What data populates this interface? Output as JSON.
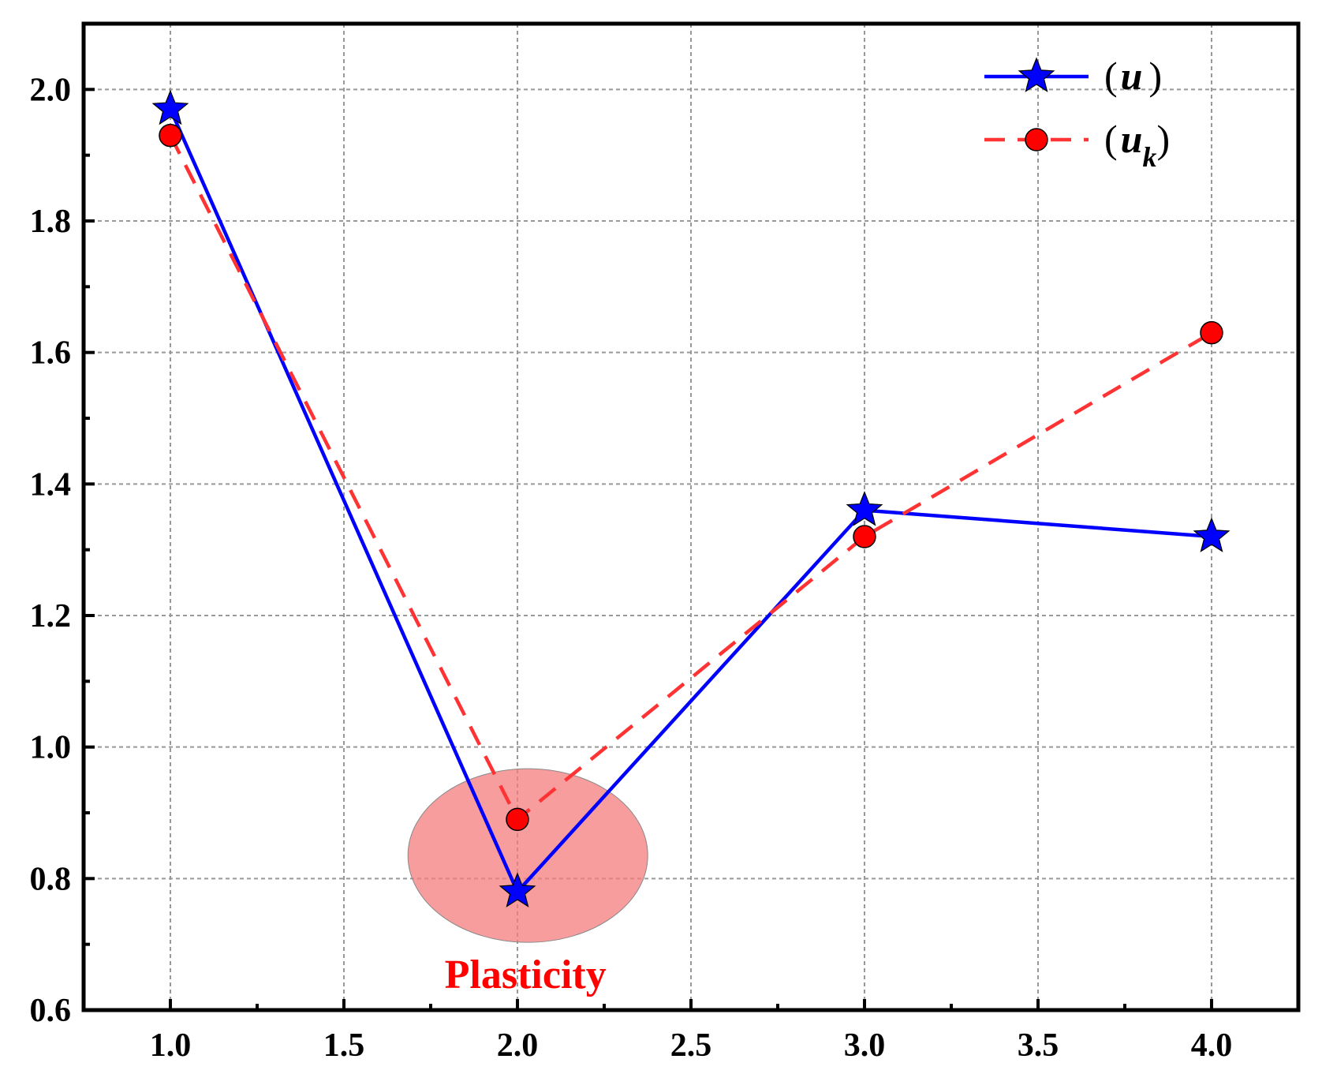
{
  "chart_data": {
    "type": "line",
    "title": "",
    "xlabel": "",
    "ylabel": "",
    "xlim": [
      0.75,
      4.25
    ],
    "ylim": [
      0.6,
      2.1
    ],
    "grid": true,
    "legend_position": "top-right",
    "x_ticks": [
      {
        "value": 1.0,
        "label": "1.0"
      },
      {
        "value": 1.5,
        "label": "1.5"
      },
      {
        "value": 2.0,
        "label": "2.0"
      },
      {
        "value": 2.5,
        "label": "2.5"
      },
      {
        "value": 3.0,
        "label": "3.0"
      },
      {
        "value": 3.5,
        "label": "3.5"
      },
      {
        "value": 4.0,
        "label": "4.0"
      }
    ],
    "y_ticks": [
      {
        "value": 0.6,
        "label": "0.6"
      },
      {
        "value": 0.8,
        "label": "0.8"
      },
      {
        "value": 1.0,
        "label": "1.0"
      },
      {
        "value": 1.2,
        "label": "1.2"
      },
      {
        "value": 1.4,
        "label": "1.4"
      },
      {
        "value": 1.6,
        "label": "1.6"
      },
      {
        "value": 1.8,
        "label": "1.8"
      },
      {
        "value": 2.0,
        "label": "2.0"
      }
    ],
    "x": [
      1.0,
      2.0,
      3.0,
      4.0
    ],
    "series": [
      {
        "name": "u",
        "legend_open": "(",
        "legend_var": "u",
        "legend_sub": "",
        "legend_close": ")",
        "values": [
          1.97,
          0.78,
          1.36,
          1.32
        ],
        "color": "#0000ff",
        "line_style": "solid",
        "marker": "star",
        "marker_color": "#0000ff"
      },
      {
        "name": "u_k",
        "legend_open": "(",
        "legend_var": "u",
        "legend_sub": "k",
        "legend_close": ")",
        "values": [
          1.93,
          0.89,
          1.32,
          1.63
        ],
        "color": "#ff3333",
        "line_style": "dashed",
        "marker": "circle",
        "marker_color": "#ff0000"
      }
    ],
    "annotations": [
      {
        "text": "Plasticity",
        "color": "#ff0000",
        "highlight_center": [
          2.03,
          0.835
        ],
        "highlight_color": "#f47c7c"
      }
    ]
  }
}
